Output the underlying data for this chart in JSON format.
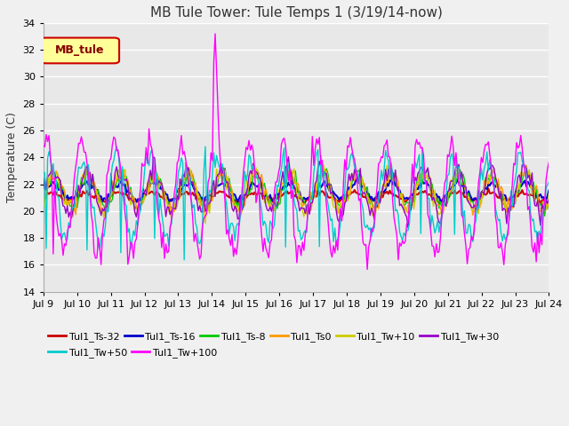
{
  "title": "MB Tule Tower: Tule Temps 1 (3/19/14-now)",
  "ylabel": "Temperature (C)",
  "ylim": [
    14,
    34
  ],
  "yticks": [
    14,
    16,
    18,
    20,
    22,
    24,
    26,
    28,
    30,
    32,
    34
  ],
  "x_tick_labels": [
    "Jul 9",
    "Jul 10",
    "Jul 11",
    "Jul 12",
    "Jul 13",
    "Jul 14",
    "Jul 15",
    "Jul 16",
    "Jul 17",
    "Jul 18",
    "Jul 19",
    "Jul 20",
    "Jul 21",
    "Jul 22",
    "Jul 23",
    "Jul 24"
  ],
  "series": [
    {
      "label": "Tul1_Ts-32",
      "color": "#cc0000"
    },
    {
      "label": "Tul1_Ts-16",
      "color": "#0000cc"
    },
    {
      "label": "Tul1_Ts-8",
      "color": "#00cc00"
    },
    {
      "label": "Tul1_Ts0",
      "color": "#ff9900"
    },
    {
      "label": "Tul1_Tw+10",
      "color": "#cccc00"
    },
    {
      "label": "Tul1_Tw+30",
      "color": "#9900cc"
    },
    {
      "label": "Tul1_Tw+50",
      "color": "#00cccc"
    },
    {
      "label": "Tul1_Tw+100",
      "color": "#ff00ff"
    }
  ],
  "legend_label": "MB_tule",
  "legend_color": "#880000",
  "legend_bg": "#ffff99",
  "legend_edge": "#cc0000",
  "plot_bg": "#e8e8e8",
  "fig_bg": "#f0f0f0",
  "grid_color": "#ffffff",
  "title_fontsize": 11,
  "axis_fontsize": 9,
  "tick_fontsize": 8,
  "legend_fontsize": 8
}
